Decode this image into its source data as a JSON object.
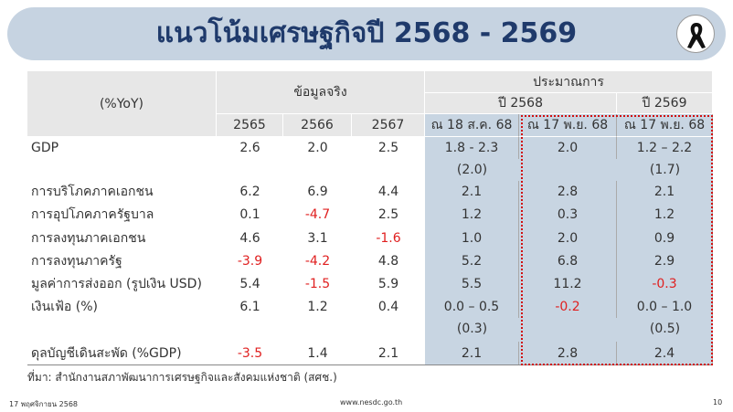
{
  "header": {
    "title": "แนวโน้มเศรษฐกิจปี 2568 - 2569"
  },
  "table": {
    "corner": "(%YoY)",
    "actual_label": "ข้อมูลจริง",
    "forecast_label": "ประมาณการ",
    "forecast_years": [
      "ปี 2568",
      "ปี 2569"
    ],
    "columns": [
      "2565",
      "2566",
      "2567",
      "ณ 18 ส.ค. 68",
      "ณ 17 พ.ย. 68",
      "ณ 17 พ.ย. 68"
    ],
    "rows": [
      {
        "label": "GDP",
        "values": [
          "2.6",
          "2.0",
          "2.5",
          "1.8 - 2.3",
          "2.0",
          "1.2 – 2.2"
        ],
        "notes": [
          null,
          null,
          null,
          "(2.0)",
          null,
          "(1.7)"
        ]
      },
      {
        "label": "การบริโภคภาคเอกชน",
        "values": [
          "6.2",
          "6.9",
          "4.4",
          "2.1",
          "2.8",
          "2.1"
        ]
      },
      {
        "label": "การอุปโภคภาครัฐบาล",
        "values": [
          "0.1",
          "-4.7",
          "2.5",
          "1.2",
          "0.3",
          "1.2"
        ]
      },
      {
        "label": "การลงทุนภาคเอกชน",
        "values": [
          "4.6",
          "3.1",
          "-1.6",
          "1.0",
          "2.0",
          "0.9"
        ]
      },
      {
        "label": "การลงทุนภาครัฐ",
        "values": [
          "-3.9",
          "-4.2",
          "4.8",
          "5.2",
          "6.8",
          "2.9"
        ]
      },
      {
        "label": "มูลค่าการส่งออก (รูปเงิน USD)",
        "values": [
          "5.4",
          "-1.5",
          "5.9",
          "5.5",
          "11.2",
          "-0.3"
        ]
      },
      {
        "label": "เงินเฟ้อ (%)",
        "values": [
          "6.1",
          "1.2",
          "0.4",
          "0.0 – 0.5",
          "-0.2",
          "0.0 – 1.0"
        ],
        "notes": [
          null,
          null,
          null,
          "(0.3)",
          null,
          "(0.5)"
        ]
      },
      {
        "label": "ดุลบัญชีเดินสะพัด (%GDP)",
        "values": [
          "-3.5",
          "1.4",
          "2.1",
          "2.1",
          "2.8",
          "2.4"
        ]
      }
    ]
  },
  "footer": {
    "source": "ที่มา: สำนักงานสภาพัฒนาการเศรษฐกิจและสังคมแห่งชาติ (สศช.)",
    "date": "17 พฤศจิกายน 2568",
    "url": "www.nesdc.go.th",
    "page": "10"
  }
}
